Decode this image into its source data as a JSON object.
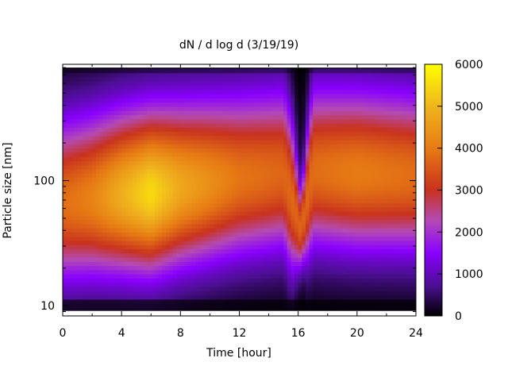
{
  "chart_data": {
    "type": "heatmap",
    "title": "dN / d log d (3/19/19)",
    "xlabel": "Time [hour]",
    "ylabel": "Particle size [nm]",
    "xlim": [
      0,
      24
    ],
    "x_ticks": [
      0,
      4,
      8,
      12,
      16,
      20,
      24
    ],
    "x_tick_labels": [
      "0",
      "4",
      "8",
      "12",
      "16",
      "20",
      "24"
    ],
    "ylim": [
      8.3,
      850
    ],
    "y_scale": "log",
    "y_ticks": [
      10,
      100
    ],
    "y_tick_labels": [
      "10",
      "100"
    ],
    "colorbar": {
      "min": 0,
      "max": 6000,
      "ticks": [
        0,
        1000,
        2000,
        3000,
        4000,
        5000,
        6000
      ],
      "tick_labels": [
        "0",
        "1000",
        "2000",
        "3000",
        "4000",
        "5000",
        "6000"
      ],
      "palette": [
        "#000000",
        "#4b0f91",
        "#8a00ff",
        "#b44bb4",
        "#c8321e",
        "#e67814",
        "#f0b41e",
        "#ffff00"
      ]
    },
    "mode_peak": [
      {
        "time": 0,
        "size": 60,
        "value": 3600
      },
      {
        "time": 2,
        "size": 65,
        "value": 3900
      },
      {
        "time": 4,
        "size": 70,
        "value": 4600
      },
      {
        "time": 6,
        "size": 72,
        "value": 5200
      },
      {
        "time": 8,
        "size": 80,
        "value": 4500
      },
      {
        "time": 12,
        "size": 95,
        "value": 3700
      },
      {
        "time": 15,
        "size": 105,
        "value": 3500
      },
      {
        "time": 16.2,
        "size": 40,
        "value": 3600
      },
      {
        "time": 17,
        "size": 110,
        "value": 3600
      },
      {
        "time": 20,
        "size": 105,
        "value": 3800
      },
      {
        "time": 24,
        "size": 100,
        "value": 3600
      }
    ]
  }
}
